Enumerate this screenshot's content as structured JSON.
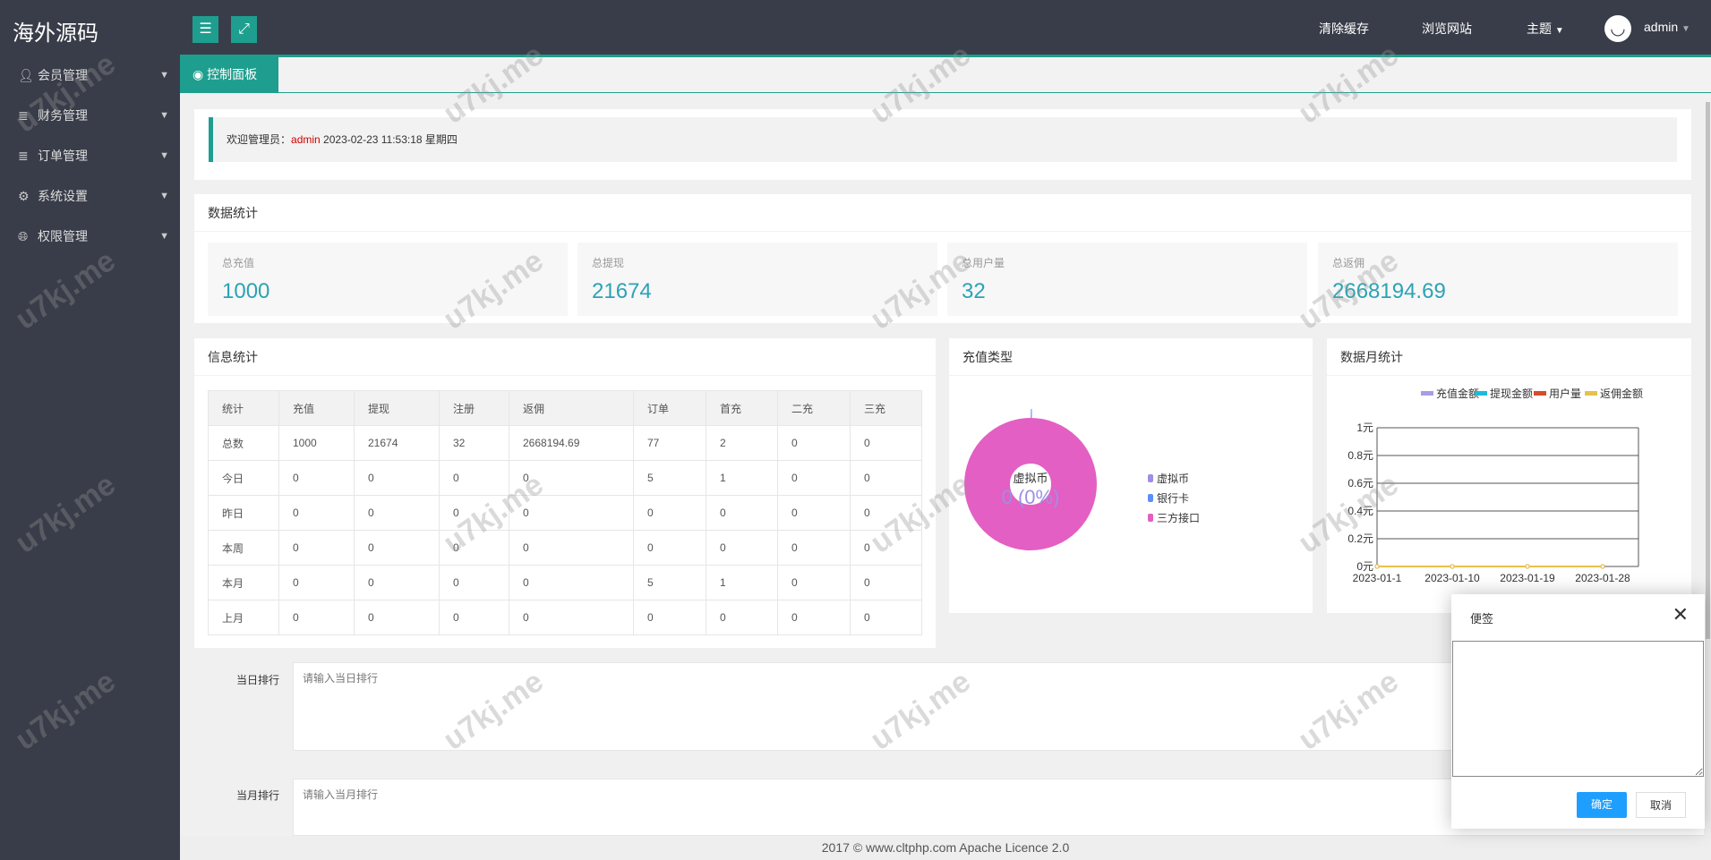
{
  "app": {
    "logo": "海外源码"
  },
  "header": {
    "clear_cache": "清除缓存",
    "browse_site": "浏览网站",
    "theme": "主题",
    "user": "admin"
  },
  "sidebar": {
    "items": [
      {
        "label": "会员管理",
        "icon": "user-icon"
      },
      {
        "label": "财务管理",
        "icon": "database-icon"
      },
      {
        "label": "订单管理",
        "icon": "database-icon"
      },
      {
        "label": "系统设置",
        "icon": "gears-icon"
      },
      {
        "label": "权限管理",
        "icon": "globe-icon"
      }
    ]
  },
  "tabs": [
    {
      "label": "控制面板",
      "icon": "globe-icon"
    }
  ],
  "welcome": {
    "prefix": "欢迎管理员：",
    "user": "admin",
    "datetime": "2023-02-23  11:53:18  星期四"
  },
  "stats": {
    "title": "数据统计",
    "items": [
      {
        "label": "总充值",
        "value": "1000"
      },
      {
        "label": "总提现",
        "value": "21674"
      },
      {
        "label": "总用户量",
        "value": "32"
      },
      {
        "label": "总返佣",
        "value": "2668194.69"
      }
    ]
  },
  "info": {
    "title": "信息统计",
    "headers": [
      "统计",
      "充值",
      "提现",
      "注册",
      "返佣",
      "订单",
      "首充",
      "二充",
      "三充"
    ],
    "rows": [
      [
        "总数",
        "1000",
        "21674",
        "32",
        "2668194.69",
        "77",
        "2",
        "0",
        "0"
      ],
      [
        "今日",
        "0",
        "0",
        "0",
        "0",
        "5",
        "1",
        "0",
        "0"
      ],
      [
        "昨日",
        "0",
        "0",
        "0",
        "0",
        "0",
        "0",
        "0",
        "0"
      ],
      [
        "本周",
        "0",
        "0",
        "0",
        "0",
        "0",
        "0",
        "0",
        "0"
      ],
      [
        "本月",
        "0",
        "0",
        "0",
        "0",
        "5",
        "1",
        "0",
        "0"
      ],
      [
        "上月",
        "0",
        "0",
        "0",
        "0",
        "0",
        "0",
        "0",
        "0"
      ]
    ]
  },
  "chart_data": [
    {
      "type": "pie",
      "title": "充值类型",
      "center_label": "虚拟币",
      "center_value": "0 (0%)",
      "legend_position": "right",
      "slices": [
        {
          "name": "虚拟币",
          "value": 0,
          "color": "#9d8fe3"
        },
        {
          "name": "银行卡",
          "value": 0,
          "color": "#5b8ff9"
        },
        {
          "name": "三方接口",
          "value": 100,
          "color": "#e35fc3"
        }
      ]
    },
    {
      "type": "line",
      "title": "数据月统计",
      "legend_position": "top-right",
      "ylim": [
        0,
        1
      ],
      "yticks": [
        "0元",
        "0.2元",
        "0.4元",
        "0.6元",
        "0.8元",
        "1元"
      ],
      "grid": true,
      "xticks": [
        "2023-01-1",
        "2023-01-10",
        "2023-01-19",
        "2023-01-28"
      ],
      "series": [
        {
          "name": "充值金额",
          "color": "#a79ee6",
          "values": [
            0,
            0,
            0,
            0
          ]
        },
        {
          "name": "提现金额",
          "color": "#1bbcd6",
          "values": [
            0,
            0,
            0,
            0
          ]
        },
        {
          "name": "用户量",
          "color": "#d94b2b",
          "values": [
            0,
            0,
            0,
            0
          ]
        },
        {
          "name": "返佣金额",
          "color": "#e8c14a",
          "values": [
            0,
            0,
            0,
            0
          ]
        }
      ]
    }
  ],
  "ranking": {
    "daily_label": "当日排行",
    "daily_placeholder": "请输入当日排行",
    "monthly_label": "当月排行",
    "monthly_placeholder": "请输入当月排行"
  },
  "note_dialog": {
    "title": "便签",
    "confirm": "确定",
    "cancel": "取消",
    "value": ""
  },
  "footer": "2017 ©  www.cltphp.com  Apache Licence 2.0",
  "watermark": "u7kj.me"
}
